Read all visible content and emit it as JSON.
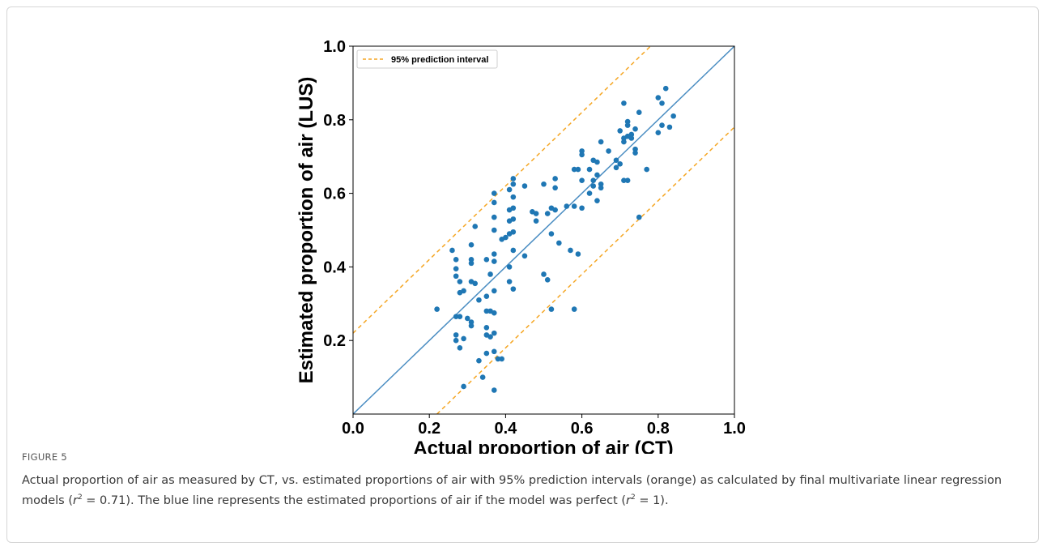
{
  "chart_data": {
    "type": "scatter",
    "xlabel": "Actual proportion of air (CT)",
    "ylabel": "Estimated proportion of air (LUS)",
    "xlim": [
      0.0,
      1.0
    ],
    "ylim": [
      0.0,
      1.0
    ],
    "x_ticks": [
      "0.0",
      "0.2",
      "0.4",
      "0.6",
      "0.8",
      "1.0"
    ],
    "y_ticks": [
      "0.2",
      "0.4",
      "0.6",
      "0.8",
      "1.0"
    ],
    "grid": false,
    "legend": {
      "position": "top-left",
      "entries": [
        "95% prediction interval"
      ]
    },
    "colors": {
      "points": "#1f77b4",
      "identity_line": "#4a8dc2",
      "interval": "#f5a623"
    },
    "identity_line": {
      "slope": 1,
      "intercept": 0
    },
    "prediction_interval_offset": 0.22,
    "points": [
      [
        0.22,
        0.285
      ],
      [
        0.26,
        0.445
      ],
      [
        0.27,
        0.42
      ],
      [
        0.27,
        0.395
      ],
      [
        0.27,
        0.375
      ],
      [
        0.28,
        0.36
      ],
      [
        0.28,
        0.33
      ],
      [
        0.29,
        0.335
      ],
      [
        0.27,
        0.265
      ],
      [
        0.28,
        0.265
      ],
      [
        0.27,
        0.215
      ],
      [
        0.27,
        0.2
      ],
      [
        0.28,
        0.18
      ],
      [
        0.29,
        0.205
      ],
      [
        0.29,
        0.075
      ],
      [
        0.3,
        0.26
      ],
      [
        0.31,
        0.25
      ],
      [
        0.31,
        0.24
      ],
      [
        0.31,
        0.46
      ],
      [
        0.31,
        0.42
      ],
      [
        0.31,
        0.41
      ],
      [
        0.31,
        0.36
      ],
      [
        0.32,
        0.51
      ],
      [
        0.32,
        0.355
      ],
      [
        0.33,
        0.31
      ],
      [
        0.33,
        0.145
      ],
      [
        0.34,
        0.1
      ],
      [
        0.35,
        0.42
      ],
      [
        0.35,
        0.32
      ],
      [
        0.35,
        0.28
      ],
      [
        0.35,
        0.235
      ],
      [
        0.35,
        0.215
      ],
      [
        0.35,
        0.165
      ],
      [
        0.36,
        0.38
      ],
      [
        0.36,
        0.28
      ],
      [
        0.36,
        0.21
      ],
      [
        0.37,
        0.6
      ],
      [
        0.37,
        0.575
      ],
      [
        0.37,
        0.535
      ],
      [
        0.37,
        0.5
      ],
      [
        0.37,
        0.435
      ],
      [
        0.37,
        0.415
      ],
      [
        0.37,
        0.335
      ],
      [
        0.37,
        0.275
      ],
      [
        0.37,
        0.22
      ],
      [
        0.37,
        0.17
      ],
      [
        0.37,
        0.065
      ],
      [
        0.38,
        0.15
      ],
      [
        0.39,
        0.15
      ],
      [
        0.39,
        0.475
      ],
      [
        0.4,
        0.48
      ],
      [
        0.41,
        0.61
      ],
      [
        0.41,
        0.555
      ],
      [
        0.41,
        0.525
      ],
      [
        0.41,
        0.49
      ],
      [
        0.41,
        0.4
      ],
      [
        0.41,
        0.36
      ],
      [
        0.42,
        0.64
      ],
      [
        0.42,
        0.625
      ],
      [
        0.42,
        0.59
      ],
      [
        0.42,
        0.56
      ],
      [
        0.42,
        0.53
      ],
      [
        0.42,
        0.495
      ],
      [
        0.42,
        0.445
      ],
      [
        0.42,
        0.34
      ],
      [
        0.45,
        0.62
      ],
      [
        0.45,
        0.43
      ],
      [
        0.47,
        0.55
      ],
      [
        0.48,
        0.545
      ],
      [
        0.48,
        0.525
      ],
      [
        0.5,
        0.625
      ],
      [
        0.5,
        0.38
      ],
      [
        0.51,
        0.365
      ],
      [
        0.51,
        0.545
      ],
      [
        0.52,
        0.56
      ],
      [
        0.52,
        0.49
      ],
      [
        0.52,
        0.285
      ],
      [
        0.53,
        0.64
      ],
      [
        0.53,
        0.615
      ],
      [
        0.53,
        0.555
      ],
      [
        0.54,
        0.465
      ],
      [
        0.56,
        0.565
      ],
      [
        0.57,
        0.445
      ],
      [
        0.58,
        0.665
      ],
      [
        0.58,
        0.565
      ],
      [
        0.58,
        0.285
      ],
      [
        0.59,
        0.665
      ],
      [
        0.59,
        0.435
      ],
      [
        0.6,
        0.715
      ],
      [
        0.6,
        0.705
      ],
      [
        0.6,
        0.635
      ],
      [
        0.6,
        0.56
      ],
      [
        0.62,
        0.665
      ],
      [
        0.62,
        0.6
      ],
      [
        0.63,
        0.69
      ],
      [
        0.63,
        0.635
      ],
      [
        0.63,
        0.62
      ],
      [
        0.64,
        0.685
      ],
      [
        0.64,
        0.65
      ],
      [
        0.64,
        0.58
      ],
      [
        0.65,
        0.74
      ],
      [
        0.65,
        0.625
      ],
      [
        0.65,
        0.615
      ],
      [
        0.67,
        0.715
      ],
      [
        0.69,
        0.69
      ],
      [
        0.69,
        0.67
      ],
      [
        0.7,
        0.77
      ],
      [
        0.7,
        0.68
      ],
      [
        0.71,
        0.845
      ],
      [
        0.71,
        0.75
      ],
      [
        0.71,
        0.74
      ],
      [
        0.71,
        0.635
      ],
      [
        0.72,
        0.795
      ],
      [
        0.72,
        0.785
      ],
      [
        0.72,
        0.755
      ],
      [
        0.72,
        0.635
      ],
      [
        0.73,
        0.76
      ],
      [
        0.73,
        0.75
      ],
      [
        0.74,
        0.775
      ],
      [
        0.74,
        0.72
      ],
      [
        0.74,
        0.71
      ],
      [
        0.75,
        0.82
      ],
      [
        0.75,
        0.535
      ],
      [
        0.77,
        0.665
      ],
      [
        0.8,
        0.86
      ],
      [
        0.8,
        0.765
      ],
      [
        0.81,
        0.785
      ],
      [
        0.82,
        0.885
      ],
      [
        0.83,
        0.78
      ],
      [
        0.84,
        0.81
      ],
      [
        0.81,
        0.845
      ]
    ]
  },
  "caption": {
    "figure_label": "FIGURE 5",
    "text_before_r1": "Actual proportion of air as measured by CT, vs. estimated proportions of air with 95% prediction intervals (orange) as calculated by final multivariate linear regression models (",
    "r1_value": " = 0.71). The blue line represents the estimated proportions of air if the model was perfect (",
    "r2_value": " = 1)."
  }
}
